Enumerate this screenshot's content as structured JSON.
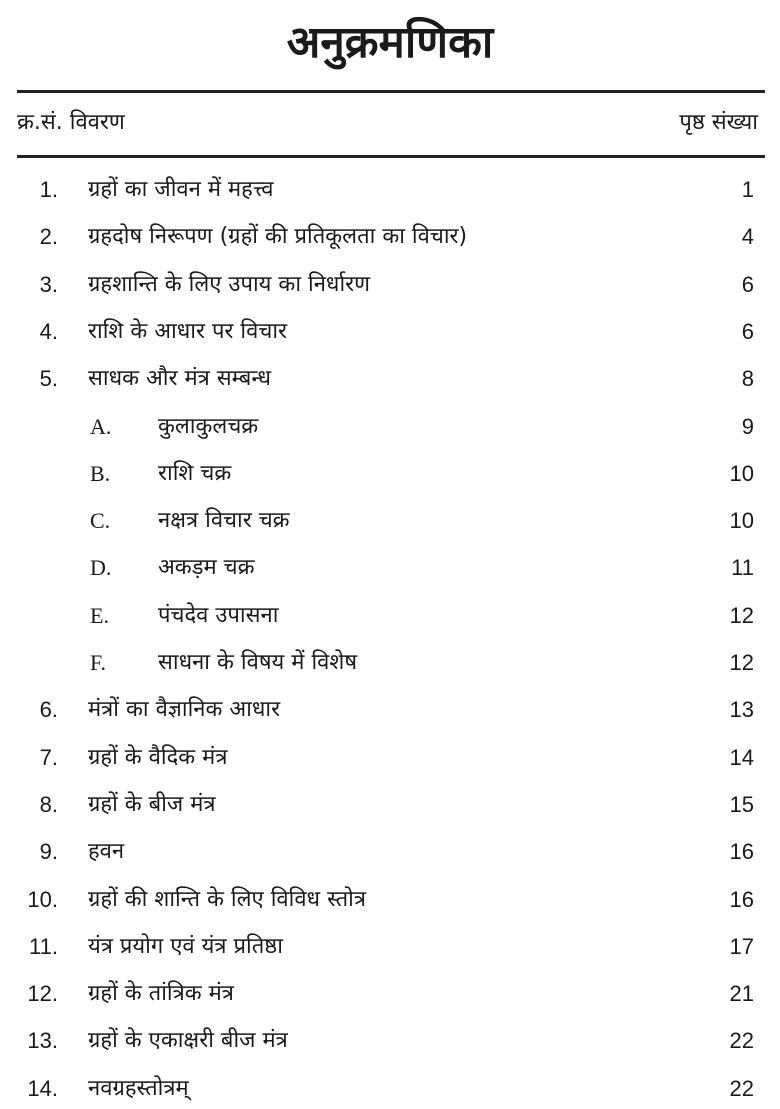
{
  "title": "अनुक्रमणिका",
  "header": {
    "serial": "क्र.सं. विवरण",
    "page": "पृष्ठ संख्या"
  },
  "entries": [
    {
      "num": "1.",
      "text": "ग्रहों का जीवन में महत्त्व",
      "page": "1",
      "sub": false
    },
    {
      "num": "2.",
      "text": "ग्रहदोष निरूपण (ग्रहों की प्रतिकूलता का विचार)",
      "page": "4",
      "sub": false
    },
    {
      "num": "3.",
      "text": "ग्रहशान्ति के लिए उपाय का निर्धारण",
      "page": "6",
      "sub": false
    },
    {
      "num": "4.",
      "text": "राशि के आधार पर विचार",
      "page": "6",
      "sub": false
    },
    {
      "num": "5.",
      "text": "साधक और मंत्र सम्बन्ध",
      "page": "8",
      "sub": false
    },
    {
      "num": "A.",
      "text": "कुलाकुलचक्र",
      "page": "9",
      "sub": true
    },
    {
      "num": "B.",
      "text": "राशि चक्र",
      "page": "10",
      "sub": true
    },
    {
      "num": "C.",
      "text": "नक्षत्र विचार चक्र",
      "page": "10",
      "sub": true
    },
    {
      "num": "D.",
      "text": "अकड़म चक्र",
      "page": "11",
      "sub": true
    },
    {
      "num": "E.",
      "text": "पंचदेव उपासना",
      "page": "12",
      "sub": true
    },
    {
      "num": "F.",
      "text": "साधना के विषय में विशेष",
      "page": "12",
      "sub": true
    },
    {
      "num": "6.",
      "text": "मंत्रों का वैज्ञानिक आधार",
      "page": "13",
      "sub": false
    },
    {
      "num": "7.",
      "text": "ग्रहों के वैदिक मंत्र",
      "page": "14",
      "sub": false
    },
    {
      "num": "8.",
      "text": "ग्रहों के बीज मंत्र",
      "page": "15",
      "sub": false
    },
    {
      "num": "9.",
      "text": "हवन",
      "page": "16",
      "sub": false
    },
    {
      "num": "10.",
      "text": "ग्रहों की शान्ति के लिए विविध स्तोत्र",
      "page": "16",
      "sub": false
    },
    {
      "num": "11.",
      "text": "यंत्र प्रयोग एवं यंत्र प्रतिष्ठा",
      "page": "17",
      "sub": false
    },
    {
      "num": "12.",
      "text": "ग्रहों के तांत्रिक मंत्र",
      "page": "21",
      "sub": false
    },
    {
      "num": "13.",
      "text": "ग्रहों के एकाक्षरी बीज मंत्र",
      "page": "22",
      "sub": false
    },
    {
      "num": "14.",
      "text": "नवग्रहस्तोत्रम्",
      "page": "22",
      "sub": false
    }
  ]
}
